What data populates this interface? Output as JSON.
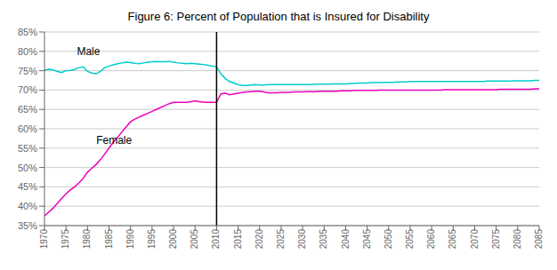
{
  "chart_data": {
    "type": "line",
    "title": "Figure 6:   Percent of Population that is Insured for Disability",
    "x": [
      1970,
      1971,
      1972,
      1973,
      1974,
      1975,
      1976,
      1977,
      1978,
      1979,
      1980,
      1981,
      1982,
      1983,
      1984,
      1985,
      1986,
      1987,
      1988,
      1989,
      1990,
      1991,
      1992,
      1993,
      1994,
      1995,
      1996,
      1997,
      1998,
      1999,
      2000,
      2001,
      2002,
      2003,
      2004,
      2005,
      2006,
      2007,
      2008,
      2009,
      2010,
      2011,
      2012,
      2013,
      2014,
      2015,
      2016,
      2017,
      2018,
      2019,
      2020,
      2021,
      2022,
      2023,
      2024,
      2025,
      2026,
      2027,
      2028,
      2029,
      2030,
      2031,
      2032,
      2033,
      2034,
      2035,
      2036,
      2037,
      2038,
      2039,
      2040,
      2041,
      2042,
      2043,
      2044,
      2045,
      2046,
      2047,
      2048,
      2049,
      2050,
      2051,
      2052,
      2053,
      2054,
      2055,
      2056,
      2057,
      2058,
      2059,
      2060,
      2061,
      2062,
      2063,
      2064,
      2065,
      2066,
      2067,
      2068,
      2069,
      2070,
      2071,
      2072,
      2073,
      2074,
      2075,
      2076,
      2077,
      2078,
      2079,
      2080,
      2081,
      2082,
      2083,
      2084,
      2085
    ],
    "series": [
      {
        "name": "Male",
        "color": "#00CCCC",
        "values": [
          0.751,
          0.754,
          0.752,
          0.748,
          0.745,
          0.75,
          0.751,
          0.753,
          0.758,
          0.76,
          0.748,
          0.744,
          0.742,
          0.748,
          0.758,
          0.762,
          0.765,
          0.768,
          0.77,
          0.772,
          0.771,
          0.769,
          0.768,
          0.77,
          0.772,
          0.773,
          0.774,
          0.773,
          0.773,
          0.774,
          0.772,
          0.77,
          0.769,
          0.768,
          0.769,
          0.768,
          0.767,
          0.766,
          0.764,
          0.762,
          0.76,
          0.742,
          0.73,
          0.722,
          0.718,
          0.714,
          0.712,
          0.712,
          0.713,
          0.714,
          0.713,
          0.713,
          0.714,
          0.714,
          0.714,
          0.714,
          0.714,
          0.714,
          0.714,
          0.714,
          0.714,
          0.714,
          0.714,
          0.715,
          0.715,
          0.715,
          0.715,
          0.716,
          0.716,
          0.716,
          0.716,
          0.717,
          0.717,
          0.718,
          0.718,
          0.718,
          0.719,
          0.719,
          0.719,
          0.72,
          0.72,
          0.72,
          0.721,
          0.721,
          0.721,
          0.722,
          0.722,
          0.722,
          0.722,
          0.722,
          0.722,
          0.722,
          0.722,
          0.722,
          0.722,
          0.722,
          0.722,
          0.722,
          0.722,
          0.722,
          0.722,
          0.722,
          0.722,
          0.723,
          0.723,
          0.723,
          0.723,
          0.723,
          0.723,
          0.724,
          0.724,
          0.724,
          0.724,
          0.724,
          0.725,
          0.725
        ]
      },
      {
        "name": "Female",
        "color": "#EE00BB",
        "values": [
          0.375,
          0.385,
          0.395,
          0.408,
          0.42,
          0.432,
          0.442,
          0.45,
          0.46,
          0.472,
          0.488,
          0.498,
          0.508,
          0.52,
          0.535,
          0.55,
          0.565,
          0.578,
          0.592,
          0.605,
          0.618,
          0.625,
          0.63,
          0.635,
          0.64,
          0.645,
          0.65,
          0.655,
          0.66,
          0.665,
          0.668,
          0.668,
          0.668,
          0.668,
          0.67,
          0.672,
          0.67,
          0.669,
          0.668,
          0.668,
          0.668,
          0.69,
          0.692,
          0.688,
          0.69,
          0.692,
          0.694,
          0.695,
          0.696,
          0.697,
          0.697,
          0.695,
          0.693,
          0.693,
          0.693,
          0.694,
          0.694,
          0.694,
          0.695,
          0.695,
          0.695,
          0.696,
          0.696,
          0.696,
          0.697,
          0.697,
          0.697,
          0.697,
          0.697,
          0.698,
          0.698,
          0.698,
          0.699,
          0.699,
          0.699,
          0.699,
          0.699,
          0.699,
          0.7,
          0.7,
          0.7,
          0.7,
          0.7,
          0.7,
          0.7,
          0.7,
          0.7,
          0.7,
          0.7,
          0.7,
          0.7,
          0.7,
          0.7,
          0.701,
          0.701,
          0.701,
          0.701,
          0.701,
          0.701,
          0.701,
          0.701,
          0.701,
          0.701,
          0.701,
          0.701,
          0.701,
          0.702,
          0.702,
          0.702,
          0.702,
          0.702,
          0.702,
          0.702,
          0.702,
          0.703,
          0.703
        ]
      }
    ],
    "xlim": [
      1970,
      2085
    ],
    "xticks": [
      1970,
      1975,
      1980,
      1985,
      1990,
      1995,
      2000,
      2005,
      2010,
      2015,
      2020,
      2025,
      2030,
      2035,
      2040,
      2045,
      2050,
      2055,
      2060,
      2065,
      2070,
      2075,
      2080,
      2085
    ],
    "ylim": [
      0.35,
      0.85
    ],
    "yticks": [
      {
        "value": 0.35,
        "label": "35%"
      },
      {
        "value": 0.4,
        "label": "40%"
      },
      {
        "value": 0.45,
        "label": "45%"
      },
      {
        "value": 0.5,
        "label": "50%"
      },
      {
        "value": 0.55,
        "label": "55%"
      },
      {
        "value": 0.6,
        "label": "60%"
      },
      {
        "value": 0.65,
        "label": "65%"
      },
      {
        "value": 0.7,
        "label": "70%"
      },
      {
        "value": 0.75,
        "label": "75%"
      },
      {
        "value": 0.8,
        "label": "80%"
      },
      {
        "value": 0.85,
        "label": "85%"
      }
    ],
    "grid": true,
    "vline": 2010,
    "annotations": [
      {
        "text": "Male",
        "x": 1976.5,
        "y": 0.8
      },
      {
        "text": "Female",
        "x": 1981,
        "y": 0.57
      }
    ]
  }
}
